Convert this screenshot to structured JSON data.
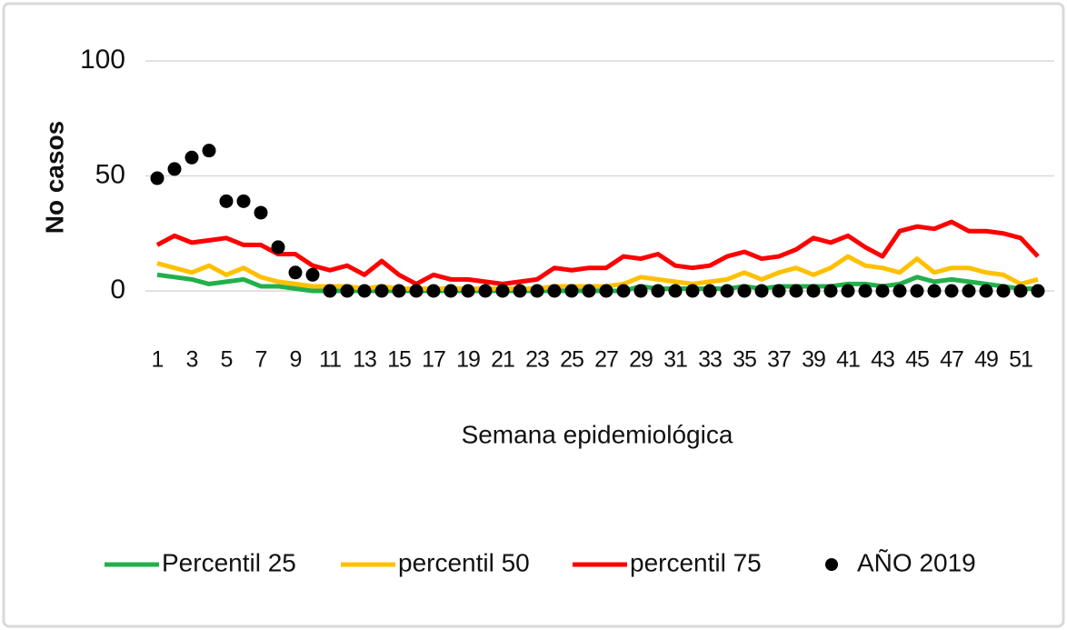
{
  "chart_data": {
    "type": "line",
    "x_label": "Semana epidemiológica",
    "y_label": "No casos",
    "categories": [
      1,
      null,
      3,
      null,
      5,
      null,
      7,
      null,
      9,
      null,
      11,
      null,
      13,
      null,
      15,
      null,
      17,
      null,
      19,
      null,
      21,
      null,
      23,
      null,
      25,
      null,
      27,
      null,
      29,
      null,
      31,
      null,
      33,
      null,
      35,
      null,
      37,
      null,
      39,
      null,
      41,
      null,
      43,
      null,
      45,
      null,
      47,
      null,
      49,
      null,
      51,
      null
    ],
    "ylim": [
      0,
      100
    ],
    "yticks": [
      0,
      50,
      100
    ],
    "grid": true,
    "legend": "bottom",
    "series": [
      {
        "name": "Percentil 25",
        "color": "#22b04b",
        "style": "line",
        "values": [
          7,
          6,
          5,
          3,
          4,
          5,
          2,
          2,
          1,
          0,
          0,
          0,
          0,
          0,
          0,
          0,
          0,
          0,
          0,
          0,
          0,
          0,
          0,
          0,
          0,
          0,
          0,
          0,
          2,
          1,
          1,
          1,
          1,
          1,
          2,
          1,
          2,
          2,
          2,
          2,
          3,
          3,
          2,
          3,
          6,
          4,
          5,
          4,
          3,
          2,
          1,
          1
        ]
      },
      {
        "name": "percentil 50",
        "color": "#ffc000",
        "style": "line",
        "values": [
          12,
          10,
          8,
          11,
          7,
          10,
          6,
          4,
          3,
          2,
          2,
          2,
          1,
          2,
          1,
          1,
          1,
          1,
          1,
          1,
          1,
          1,
          1,
          2,
          2,
          2,
          2,
          3,
          6,
          5,
          4,
          3,
          4,
          5,
          8,
          5,
          8,
          10,
          7,
          10,
          15,
          11,
          10,
          8,
          14,
          8,
          10,
          10,
          8,
          7,
          3,
          5
        ]
      },
      {
        "name": "percentil 75",
        "color": "#ff0000",
        "style": "line",
        "values": [
          20,
          24,
          21,
          22,
          23,
          20,
          20,
          16,
          16,
          11,
          9,
          11,
          7,
          13,
          7,
          3,
          7,
          5,
          5,
          4,
          3,
          4,
          5,
          10,
          9,
          10,
          10,
          15,
          14,
          16,
          11,
          10,
          11,
          15,
          17,
          14,
          15,
          18,
          23,
          21,
          24,
          19,
          15,
          26,
          28,
          27,
          30,
          26,
          26,
          25,
          23,
          15
        ]
      },
      {
        "name": "AÑO 2019",
        "color": "#000000",
        "style": "markers",
        "values": [
          49,
          53,
          58,
          61,
          39,
          39,
          34,
          19,
          8,
          7,
          0,
          0,
          0,
          0,
          0,
          0,
          0,
          0,
          0,
          0,
          0,
          0,
          0,
          0,
          0,
          0,
          0,
          0,
          0,
          0,
          0,
          0,
          0,
          0,
          0,
          0,
          0,
          0,
          0,
          0,
          0,
          0,
          0,
          0,
          0,
          0,
          0,
          0,
          0,
          0,
          0,
          0
        ]
      }
    ]
  }
}
